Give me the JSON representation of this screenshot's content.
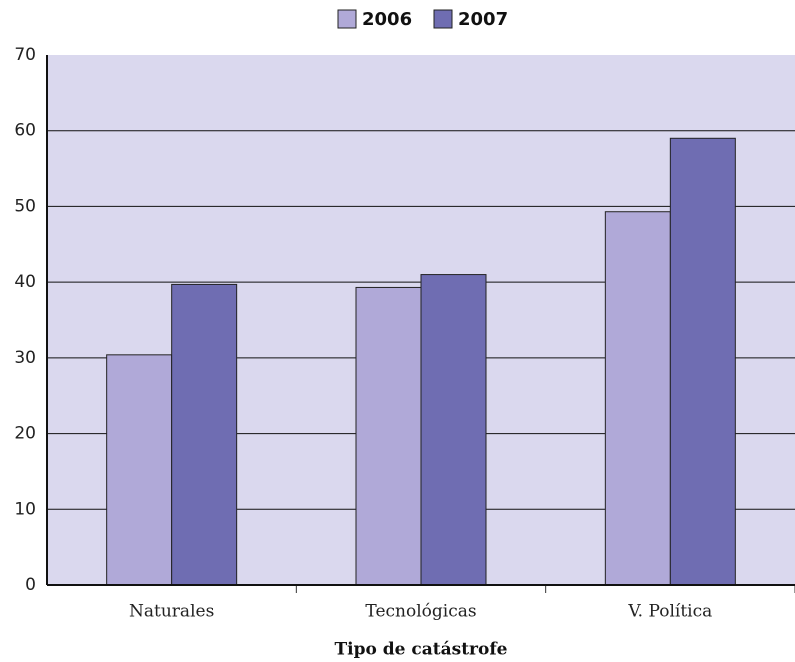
{
  "chart_data": {
    "type": "bar",
    "x_label": "Tipo de catástrofe",
    "categories": [
      "Naturales",
      "Tecnológicas",
      "V. Política"
    ],
    "series": [
      {
        "name": "2006",
        "color": "#b0a9d8",
        "values": [
          30.4,
          39.3,
          49.3
        ]
      },
      {
        "name": "2007",
        "color": "#6f6db2",
        "values": [
          39.7,
          41.0,
          59.0
        ]
      }
    ],
    "ylim": [
      0,
      70
    ],
    "yticks": [
      0,
      10,
      20,
      30,
      40,
      50,
      60,
      70
    ],
    "grid": true,
    "legend": "top"
  }
}
